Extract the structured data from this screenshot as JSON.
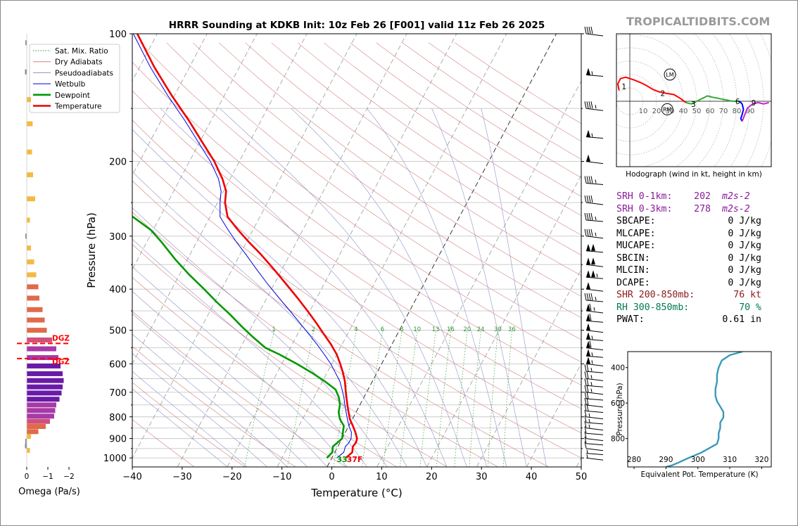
{
  "title": "HRRR Sounding at KDKB Init: 10z Feb 26 [F001] valid 11z Feb 26 2025",
  "brand": "TROPICALTIDBITS.COM",
  "colors": {
    "temperature": "#ee0000",
    "dewpoint": "#009900",
    "wetbulb": "#0000dd",
    "dry_adiabat": "#d08080",
    "moist_adiabat": "#9090c8",
    "mixing_ratio": "#339933",
    "isotherm_0": "#222222",
    "isobar": "#c8c8c8",
    "srh": "#8b1a9a",
    "shear": "#8b1a1a",
    "rh": "#007a4d",
    "theta_e": "#3a9ab8",
    "dgz": "#ff0000",
    "hodo_0_3km": "#ff0000",
    "hodo_3_6km": "#33aa33",
    "hodo_6_9km": "#0000ff",
    "hodo_9km_plus": "#cc22cc"
  },
  "chart_data": [
    {
      "id": "skewt",
      "type": "line",
      "title": "HRRR Sounding at KDKB Init: 10z Feb 26 [F001] valid 11z Feb 26 2025",
      "xlabel": "Temperature (°C)",
      "ylabel": "Pressure (hPa)",
      "xlim": [
        -40,
        50
      ],
      "ylim": [
        1050,
        100
      ],
      "y_scale": "log",
      "skew_deg_per_decade": 45,
      "x_ticks": [
        "−40",
        "−30",
        "−20",
        "−10",
        "0",
        "10",
        "20",
        "30",
        "40",
        "50"
      ],
      "y_ticks": [
        "100",
        "200",
        "300",
        "400",
        "500",
        "600",
        "700",
        "800",
        "900",
        "1000"
      ],
      "legend": {
        "position": "top-left",
        "entries": [
          "Sat. Mix. Ratio",
          "Dry Adiabats",
          "Pseudoadiabats",
          "Wetbulb",
          "Dewpoint",
          "Temperature"
        ]
      },
      "mixing_ratio_labels": [
        "1",
        "2",
        "4",
        "6",
        "8",
        "10",
        "13",
        "16",
        "20",
        "24",
        "30",
        "36"
      ],
      "surface_label": {
        "dewpoint": "33",
        "temperature": "37F"
      },
      "series": [
        {
          "name": "Temperature",
          "p": [
            1000,
            970,
            940,
            920,
            900,
            870,
            840,
            810,
            780,
            750,
            720,
            690,
            660,
            630,
            600,
            570,
            540,
            510,
            480,
            450,
            420,
            390,
            360,
            330,
            310,
            290,
            270,
            250,
            235,
            220,
            200,
            180,
            160,
            140,
            120,
            100
          ],
          "t": [
            2.8,
            3.5,
            3.0,
            3.2,
            3.0,
            2.0,
            0.8,
            -0.5,
            -1.5,
            -2.5,
            -3.5,
            -4.5,
            -5.5,
            -6.8,
            -8.3,
            -10.0,
            -12.2,
            -14.8,
            -17.5,
            -20.5,
            -23.8,
            -27.5,
            -31.5,
            -36.0,
            -39.5,
            -43.0,
            -46.5,
            -48.5,
            -49.5,
            -51.5,
            -55.0,
            -59.5,
            -64.5,
            -70.5,
            -77.0,
            -84.0
          ]
        },
        {
          "name": "Dewpoint",
          "p": [
            1000,
            970,
            940,
            920,
            900,
            870,
            840,
            810,
            780,
            750,
            720,
            690,
            660,
            630,
            600,
            570,
            550,
            520,
            490,
            460,
            430,
            400,
            370,
            340,
            310,
            290,
            270,
            255,
            240,
            225,
            210,
            195,
            170,
            140,
            120,
            100
          ],
          "t": [
            -1.0,
            -0.5,
            -1.0,
            -0.5,
            0.0,
            -0.5,
            -1.0,
            -2.5,
            -3.5,
            -4.0,
            -5.0,
            -6.5,
            -9.5,
            -13.0,
            -17.0,
            -21.5,
            -25.0,
            -28.5,
            -32.0,
            -35.5,
            -39.5,
            -43.5,
            -48.0,
            -52.5,
            -57.0,
            -60.5,
            -65.5,
            -70.0,
            -73.0,
            -75.5,
            -77.5,
            -80.0,
            -84.0,
            -88.5,
            -92.0,
            -96.0
          ]
        },
        {
          "name": "Wetbulb",
          "p": [
            1000,
            970,
            940,
            920,
            900,
            870,
            840,
            810,
            780,
            750,
            720,
            690,
            660,
            630,
            600,
            570,
            540,
            510,
            480,
            450,
            420,
            390,
            360,
            330,
            310,
            290,
            270,
            250,
            235,
            220,
            200,
            180,
            160,
            140,
            120,
            100
          ],
          "t": [
            1.0,
            1.8,
            1.5,
            1.8,
            1.8,
            1.2,
            0.0,
            -1.0,
            -2.0,
            -3.0,
            -4.0,
            -5.2,
            -6.5,
            -8.3,
            -10.2,
            -12.5,
            -15.0,
            -17.8,
            -20.8,
            -24.0,
            -27.5,
            -31.2,
            -35.0,
            -39.0,
            -42.0,
            -45.0,
            -48.0,
            -49.5,
            -50.5,
            -52.3,
            -55.8,
            -60.3,
            -65.3,
            -71.3,
            -77.8,
            -84.8
          ]
        }
      ]
    },
    {
      "id": "omega",
      "type": "bar",
      "xlabel": "Omega (Pa/s)",
      "x_ticks": [
        "0",
        "−1",
        "−2"
      ],
      "dgz_label": "DGZ",
      "dgz_bounds_hpa": [
        537,
        583
      ],
      "p": [
        105,
        123,
        143,
        163,
        190,
        215,
        245,
        275,
        300,
        320,
        345,
        370,
        395,
        420,
        447,
        473,
        500,
        527,
        553,
        580,
        607,
        633,
        657,
        680,
        703,
        727,
        750,
        773,
        797,
        820,
        843,
        867,
        890,
        913,
        937,
        960
      ],
      "omega": [
        -0.05,
        -0.1,
        -0.2,
        -0.28,
        -0.25,
        -0.3,
        -0.4,
        -0.15,
        -0.05,
        -0.2,
        -0.35,
        -0.45,
        -0.55,
        -0.6,
        -0.75,
        -0.85,
        -0.95,
        -1.2,
        -1.4,
        -1.5,
        -1.6,
        -1.7,
        -1.75,
        -1.7,
        -1.65,
        -1.55,
        -1.4,
        -1.35,
        -1.3,
        -1.1,
        -0.9,
        -0.55,
        -0.2,
        -0.05,
        -0.1,
        -0.15
      ]
    },
    {
      "id": "hodograph",
      "type": "line",
      "xlabel": "Hodograph (wind in kt, height in km)",
      "ring_labels": [
        "10",
        "20",
        "30",
        "40",
        "50",
        "60",
        "70",
        "80",
        "90"
      ],
      "storm_motion_labels": [
        "LM",
        "RM"
      ],
      "height_labels": [
        "1",
        "2",
        "3",
        "6",
        "9"
      ],
      "segments": [
        {
          "name": "0-3km",
          "u": [
            -8,
            -9,
            -7,
            -3,
            3,
            8,
            12,
            17,
            22,
            27,
            33,
            38,
            42
          ],
          "v": [
            8,
            13,
            17,
            18,
            16,
            14,
            12,
            9,
            7,
            6,
            5,
            2,
            -1
          ]
        },
        {
          "name": "3-6km",
          "u": [
            42,
            46,
            50,
            54,
            58,
            62,
            67,
            72,
            77,
            82
          ],
          "v": [
            -1,
            -2,
            0,
            2,
            4,
            3,
            2,
            1,
            0,
            0
          ]
        },
        {
          "name": "6-9km",
          "u": [
            82,
            84,
            85,
            84,
            83,
            84
          ],
          "v": [
            0,
            -2,
            -6,
            -10,
            -13,
            -15
          ]
        },
        {
          "name": "9km+",
          "u": [
            84,
            88,
            92,
            96,
            100,
            104
          ],
          "v": [
            -15,
            -5,
            -2,
            -1,
            -2,
            -1
          ]
        }
      ],
      "storm_motion": {
        "LM": [
          30,
          20
        ],
        "RM": [
          28,
          -6
        ]
      }
    },
    {
      "id": "theta_e",
      "type": "line",
      "xlabel": "Equivalent Pot. Temperature (K)",
      "ylabel": "Pressure (hPa)",
      "xlim": [
        278,
        323
      ],
      "ylim": [
        960,
        310
      ],
      "x_ticks": [
        "280",
        "290",
        "300",
        "310",
        "320"
      ],
      "y_ticks": [
        "400",
        "600",
        "800"
      ],
      "theta_e": [
        290,
        292,
        294,
        297,
        301,
        304,
        306,
        306.5,
        306.5,
        307,
        307,
        308,
        308,
        307,
        306,
        305.5,
        305.5,
        306,
        306,
        306.5,
        307.5,
        310,
        314
      ],
      "p": [
        960,
        950,
        935,
        910,
        880,
        850,
        830,
        800,
        770,
        740,
        710,
        680,
        650,
        620,
        590,
        560,
        520,
        480,
        440,
        400,
        360,
        330,
        310
      ]
    }
  ],
  "stats": [
    {
      "label": "SRH 0-1km:",
      "value": "202",
      "unit": "m2s-2",
      "color": "srh"
    },
    {
      "label": "SRH 0-3km:",
      "value": "278",
      "unit": "m2s-2",
      "color": "srh"
    },
    {
      "label": "SBCAPE:",
      "value": "0 J/kg",
      "unit": "",
      "color": ""
    },
    {
      "label": "MLCAPE:",
      "value": "0 J/kg",
      "unit": "",
      "color": ""
    },
    {
      "label": "MUCAPE:",
      "value": "0 J/kg",
      "unit": "",
      "color": ""
    },
    {
      "label": "SBCIN:",
      "value": "0 J/kg",
      "unit": "",
      "color": ""
    },
    {
      "label": "MLCIN:",
      "value": "0 J/kg",
      "unit": "",
      "color": ""
    },
    {
      "label": "DCAPE:",
      "value": "0 J/kg",
      "unit": "",
      "color": ""
    },
    {
      "label": "SHR 200-850mb:",
      "value": "76 kt",
      "unit": "",
      "color": "shear"
    },
    {
      "label": "RH 300-850mb:",
      "value": "70 %",
      "unit": "",
      "color": "rh"
    },
    {
      "label": "PWAT:",
      "value": "0.61 in",
      "unit": "",
      "color": ""
    }
  ],
  "wind_barbs": {
    "p": [
      100,
      125,
      150,
      175,
      200,
      225,
      250,
      275,
      300,
      325,
      350,
      375,
      400,
      425,
      450,
      475,
      500,
      525,
      550,
      575,
      600,
      625,
      650,
      675,
      700,
      725,
      750,
      775,
      800,
      825,
      850,
      875,
      900,
      925,
      950,
      975,
      1000
    ],
    "speed_kt": [
      40,
      55,
      45,
      55,
      50,
      45,
      40,
      45,
      45,
      100,
      100,
      105,
      50,
      45,
      65,
      60,
      50,
      55,
      60,
      55,
      55,
      25,
      25,
      25,
      25,
      20,
      20,
      20,
      15,
      15,
      15,
      10,
      10,
      10,
      10,
      5,
      5
    ],
    "dir_deg": [
      265,
      260,
      265,
      260,
      265,
      260,
      265,
      260,
      260,
      255,
      255,
      250,
      255,
      250,
      250,
      250,
      255,
      250,
      250,
      245,
      250,
      250,
      245,
      240,
      230,
      225,
      215,
      210,
      205,
      200,
      195,
      190,
      185,
      180,
      175,
      170,
      165
    ]
  }
}
